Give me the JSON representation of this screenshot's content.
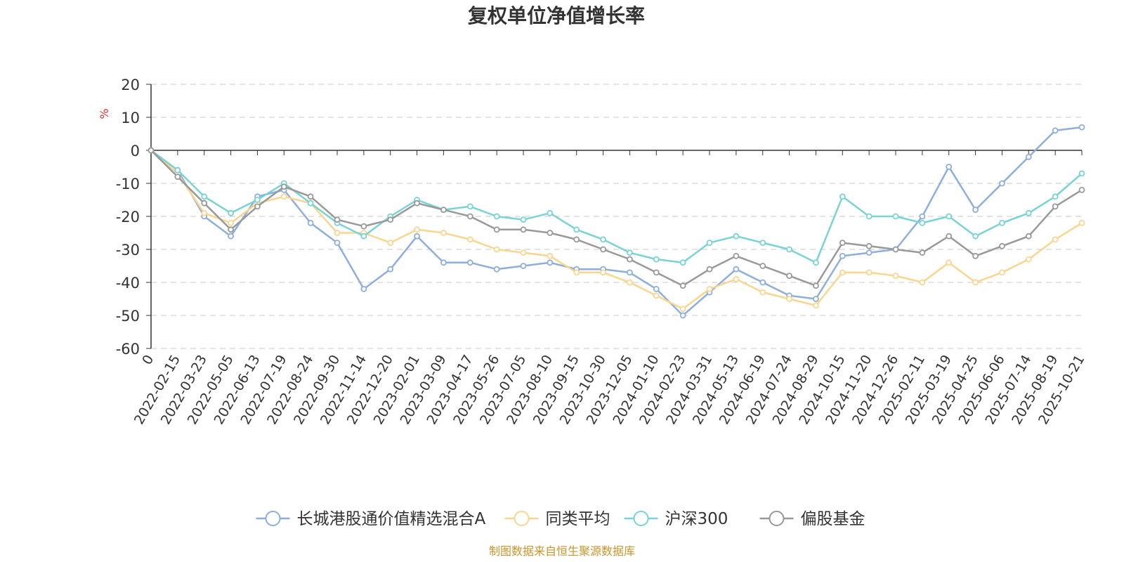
{
  "chart_data": {
    "type": "line",
    "title": "复权单位净值增长率",
    "ylabel": "%",
    "ylim": [
      -60,
      20
    ],
    "yticks": [
      20,
      10,
      0,
      -10,
      -20,
      -30,
      -40,
      -50,
      -60
    ],
    "grid": true,
    "legend_position": "bottom",
    "source": "制图数据来自恒生聚源数据库",
    "categories": [
      "0",
      "2022-02-15",
      "2022-03-23",
      "2022-05-05",
      "2022-06-13",
      "2022-07-19",
      "2022-08-24",
      "2022-09-30",
      "2022-11-14",
      "2022-12-20",
      "2023-02-01",
      "2023-03-09",
      "2023-04-17",
      "2023-05-26",
      "2023-07-05",
      "2023-08-10",
      "2023-09-15",
      "2023-10-30",
      "2023-12-05",
      "2024-01-10",
      "2024-02-23",
      "2024-03-31",
      "2024-05-13",
      "2024-06-19",
      "2024-07-24",
      "2024-08-29",
      "2024-10-15",
      "2024-11-20",
      "2024-12-26",
      "2025-02-11",
      "2025-03-19",
      "2025-04-25",
      "2025-06-06",
      "2025-07-14",
      "2025-08-19",
      "2025-10-21"
    ],
    "series": [
      {
        "name": "长城港股通价值精选混合A",
        "color": "#8eaedb",
        "values": [
          0,
          -6,
          -20,
          -26,
          -14,
          -12,
          -22,
          -28,
          -42,
          -36,
          -26,
          -34,
          -34,
          -36,
          -35,
          -34,
          -36,
          -36,
          -37,
          -42,
          -50,
          -43,
          -36,
          -40,
          -44,
          -45,
          -32,
          -31,
          -30,
          -20,
          -5,
          -18,
          -10,
          -2,
          6,
          7
        ]
      },
      {
        "name": "同类平均",
        "color": "#f9d590",
        "values": [
          0,
          -7,
          -19,
          -22,
          -16,
          -14,
          -16,
          -25,
          -25,
          -28,
          -24,
          -25,
          -27,
          -30,
          -31,
          -32,
          -37,
          -37,
          -40,
          -44,
          -48,
          -42,
          -39,
          -43,
          -45,
          -47,
          -37,
          -37,
          -38,
          -40,
          -34,
          -40,
          -37,
          -33,
          -27,
          -22
        ]
      },
      {
        "name": "沪深300",
        "color": "#79d3d4",
        "values": [
          0,
          -6,
          -14,
          -19,
          -15,
          -10,
          -16,
          -22,
          -26,
          -20,
          -15,
          -18,
          -17,
          -20,
          -21,
          -19,
          -24,
          -27,
          -31,
          -33,
          -34,
          -28,
          -26,
          -28,
          -30,
          -34,
          -14,
          -20,
          -20,
          -22,
          -20,
          -26,
          -22,
          -19,
          -14,
          -7
        ]
      },
      {
        "name": "偏股基金",
        "color": "#999999",
        "values": [
          0,
          -8,
          -16,
          -24,
          -17,
          -11,
          -14,
          -21,
          -23,
          -21,
          -16,
          -18,
          -20,
          -24,
          -24,
          -25,
          -27,
          -30,
          -33,
          -37,
          -41,
          -36,
          -32,
          -35,
          -38,
          -41,
          -28,
          -29,
          -30,
          -31,
          -26,
          -32,
          -29,
          -26,
          -17,
          -12
        ]
      }
    ]
  }
}
